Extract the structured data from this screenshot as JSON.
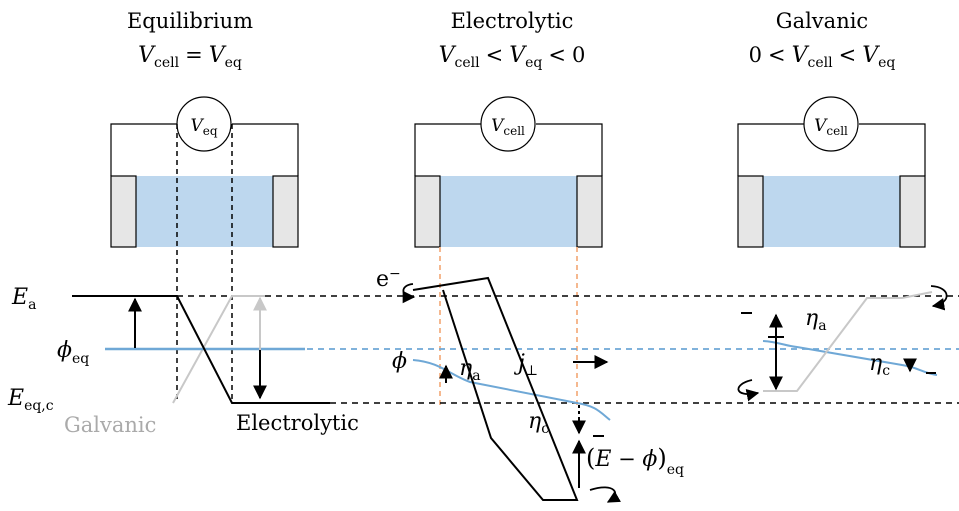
{
  "colors": {
    "electrolyte": "#bdd7ee",
    "electrode": "#e6e6e6",
    "potential": "#6fa8d6",
    "galvanic_line": "#c8c8c8",
    "projection": "#f4b183"
  },
  "panels": {
    "equilibrium": {
      "title": "Equilibrium",
      "relation": {
        "v1": "V",
        "s1": "cell",
        "op1": "=",
        "v2": "V",
        "s2": "eq"
      },
      "meter": {
        "v": "V",
        "s": "eq"
      }
    },
    "electrolytic": {
      "title": "Electrolytic",
      "relation": {
        "v1": "V",
        "s1": "cell",
        "op1": "<",
        "v2": "V",
        "s2": "eq",
        "op2": "<",
        "n": "0"
      },
      "meter": {
        "v": "V",
        "s": "cell"
      }
    },
    "galvanic": {
      "title": "Galvanic",
      "relation": {
        "n": "0",
        "op1": "<",
        "v1": "V",
        "s1": "cell",
        "op2": "<",
        "v2": "V",
        "s2": "eq"
      },
      "meter": {
        "v": "V",
        "s": "cell"
      }
    }
  },
  "labels": {
    "Ea": {
      "main": "E",
      "sub": "a"
    },
    "phieq": {
      "main": "ϕ",
      "sub": "eq"
    },
    "Eeqc": {
      "main": "E",
      "sub": "eq,c"
    },
    "galvanic": "Galvanic",
    "electrolytic": "Electrolytic",
    "electron": {
      "main": "e",
      "sup": "−"
    },
    "phi": "ϕ",
    "eta_a": {
      "main": "η",
      "sub": "a"
    },
    "eta_c": {
      "main": "η",
      "sub": "c"
    },
    "jperp": {
      "main": "j",
      "sub": "⊥"
    },
    "E_minus_phi": {
      "open": "(",
      "E": "E",
      "minus": " − ",
      "phi": "ϕ",
      "close": ")",
      "sub": "eq"
    }
  }
}
